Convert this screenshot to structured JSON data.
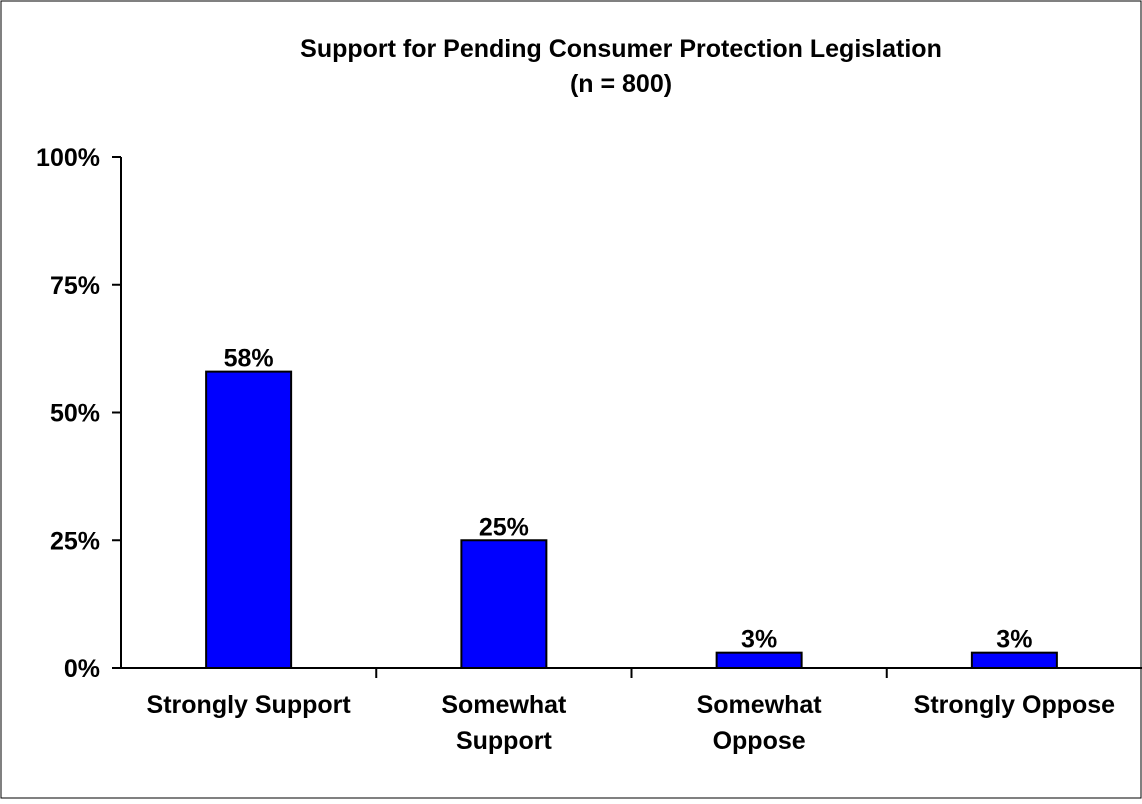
{
  "chart_data": {
    "type": "bar",
    "title": "Support for Pending Consumer Protection Legislation",
    "subtitle": "(n = 800)",
    "categories": [
      [
        "Strongly Support"
      ],
      [
        "Somewhat",
        "Support"
      ],
      [
        "Somewhat",
        "Oppose"
      ],
      [
        "Strongly Oppose"
      ]
    ],
    "values": [
      58,
      25,
      3,
      3
    ],
    "data_labels": [
      "58%",
      "25%",
      "3%",
      "3%"
    ],
    "yticks": [
      0,
      25,
      50,
      75,
      100
    ],
    "ytick_labels": [
      "0%",
      "25%",
      "50%",
      "75%",
      "100%"
    ],
    "ylim": [
      0,
      100
    ],
    "xlabel": "",
    "ylabel": "",
    "grid": false,
    "legend": "none",
    "bar_color": "#0000FF",
    "bar_edge_color": "#000000"
  }
}
